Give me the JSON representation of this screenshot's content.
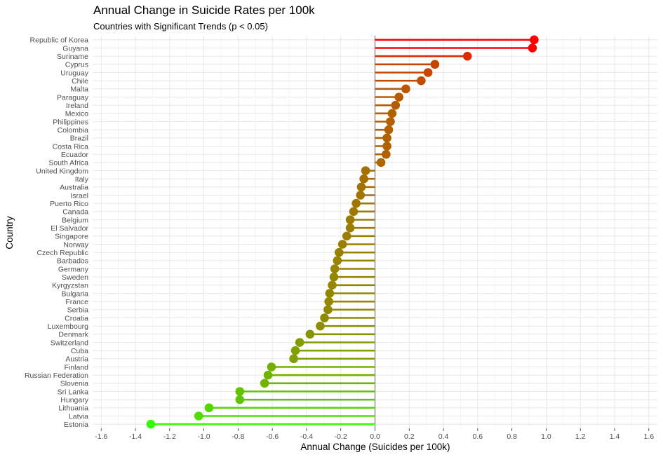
{
  "chart_data": {
    "type": "lollipop",
    "title": "Annual Change in Suicide Rates per 100k",
    "subtitle": "Countries with Significant Trends (p < 0.05)",
    "xlabel": "Annual Change (Suicides per 100k)",
    "ylabel": "Country",
    "xlim": [
      -1.65,
      1.65
    ],
    "xticks": [
      -1.6,
      -1.4,
      -1.2,
      -1.0,
      -0.8,
      -0.6,
      -0.4,
      -0.2,
      0.0,
      0.2,
      0.4,
      0.6,
      0.8,
      1.0,
      1.2,
      1.4,
      1.6
    ],
    "xtick_labels": [
      "-1.6",
      "-1.4",
      "-1.2",
      "-1.0",
      "-0.8",
      "-0.6",
      "-0.4",
      "-0.2",
      "0.0",
      "0.2",
      "0.4",
      "0.6",
      "0.8",
      "1.0",
      "1.2",
      "1.4",
      "1.6"
    ],
    "grid": true,
    "reference_line": 0,
    "color_low": "#33ff00",
    "color_high": "#ff0000",
    "countries": [
      "Republic of Korea",
      "Guyana",
      "Suriname",
      "Cyprus",
      "Uruguay",
      "Chile",
      "Malta",
      "Paraguay",
      "Ireland",
      "Mexico",
      "Philippines",
      "Colombia",
      "Brazil",
      "Costa Rica",
      "Ecuador",
      "South Africa",
      "United Kingdom",
      "Italy",
      "Australia",
      "Israel",
      "Puerto Rico",
      "Canada",
      "Belgium",
      "El Salvador",
      "Singapore",
      "Norway",
      "Czech Republic",
      "Barbados",
      "Germany",
      "Sweden",
      "Kyrgyzstan",
      "Bulgaria",
      "France",
      "Serbia",
      "Croatia",
      "Luxembourg",
      "Denmark",
      "Switzerland",
      "Cuba",
      "Austria",
      "Finland",
      "Russian Federation",
      "Slovenia",
      "Sri Lanka",
      "Hungary",
      "Lithuania",
      "Latvia",
      "Estonia"
    ],
    "values": [
      0.93,
      0.92,
      0.54,
      0.35,
      0.31,
      0.27,
      0.18,
      0.14,
      0.12,
      0.1,
      0.09,
      0.08,
      0.07,
      0.07,
      0.065,
      0.035,
      -0.055,
      -0.065,
      -0.08,
      -0.085,
      -0.11,
      -0.125,
      -0.145,
      -0.145,
      -0.165,
      -0.19,
      -0.21,
      -0.22,
      -0.235,
      -0.24,
      -0.25,
      -0.265,
      -0.27,
      -0.275,
      -0.295,
      -0.32,
      -0.38,
      -0.44,
      -0.465,
      -0.475,
      -0.605,
      -0.625,
      -0.645,
      -0.79,
      -0.79,
      -0.97,
      -1.03,
      -1.31
    ]
  }
}
